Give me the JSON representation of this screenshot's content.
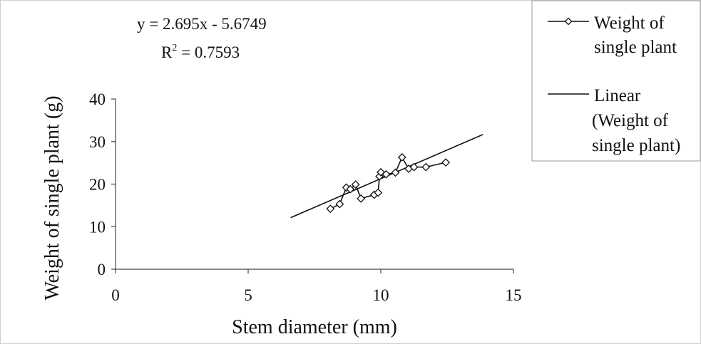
{
  "chart_data": {
    "type": "scatter",
    "xlabel": "Stem diameter (mm)",
    "ylabel": "Weight of single plant (g)",
    "xlim": [
      0,
      15
    ],
    "ylim": [
      0,
      40
    ],
    "x_ticks": [
      "0",
      "5",
      "10",
      "15"
    ],
    "y_ticks": [
      "0",
      "10",
      "20",
      "30",
      "40"
    ],
    "grid": false,
    "legend_position": "right",
    "annotations": {
      "equation": "y = 2.695x - 5.6749",
      "r2_label": "R",
      "r2_sup": "2",
      "r2_value": " = 0.7593"
    },
    "series": [
      {
        "name": "Weight of single plant",
        "legend_lines": [
          "Weight of",
          "single plant"
        ],
        "kind": "line-marker",
        "marker": "diamond",
        "color": "#111111",
        "x": [
          8.1,
          8.45,
          8.7,
          8.85,
          9.05,
          9.25,
          9.75,
          9.9,
          9.95,
          10.0,
          10.2,
          10.55,
          10.8,
          11.05,
          11.25,
          11.7,
          12.45
        ],
        "y": [
          14.2,
          15.3,
          19.2,
          18.8,
          19.9,
          16.6,
          17.5,
          18.0,
          21.8,
          22.8,
          22.3,
          22.7,
          26.3,
          23.6,
          24.0,
          24.0,
          25.1
        ]
      },
      {
        "name": "Linear (Weight of single plant)",
        "legend_lines": [
          "Linear",
          "(Weight of",
          "single plant)"
        ],
        "kind": "trendline",
        "color": "#111111",
        "slope": 2.695,
        "intercept": -5.6749,
        "x_range": [
          6.6,
          13.85
        ]
      }
    ]
  }
}
